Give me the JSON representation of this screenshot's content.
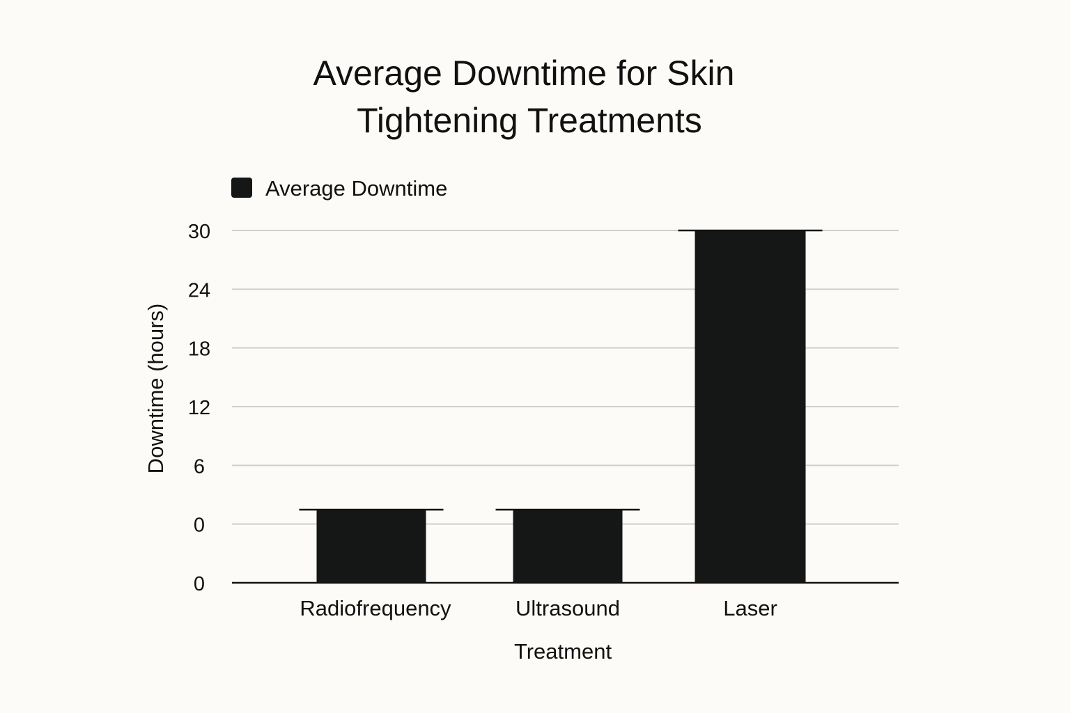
{
  "chart_data": {
    "type": "bar",
    "title": [
      "Average Downtime for Skin",
      "Tightening Treatments"
    ],
    "xlabel": "Treatment",
    "ylabel": "Downtime (hours)",
    "categories": [
      "Radiofrequency",
      "Ultrasound",
      "Laser"
    ],
    "series": [
      {
        "name": "Average Downtime",
        "values": [
          6,
          6,
          30
        ],
        "color": "#151716"
      }
    ],
    "y_tick_labels": [
      "0",
      "0",
      "6",
      "12",
      "18",
      "24",
      "30"
    ],
    "ylim": [
      0,
      30
    ],
    "grid": true,
    "legend_position": "top-left"
  }
}
